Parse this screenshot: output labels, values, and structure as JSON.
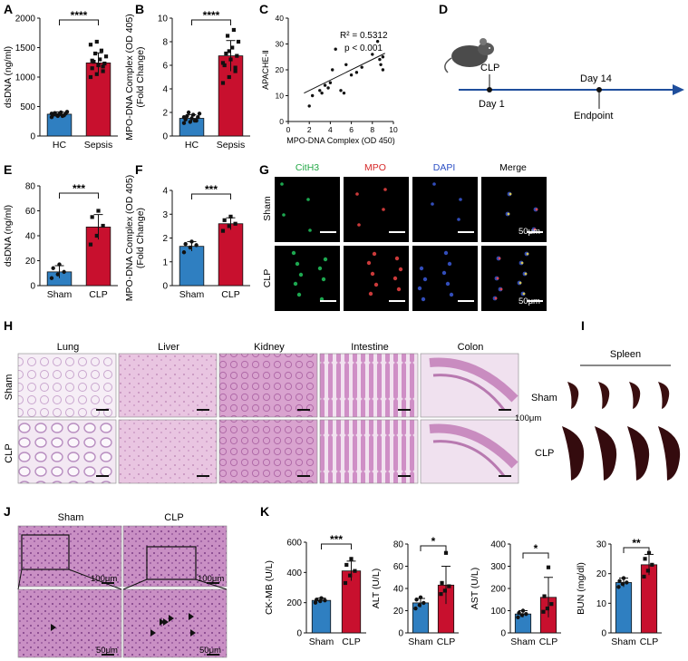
{
  "panels": {
    "A": "A",
    "B": "B",
    "C": "C",
    "D": "D",
    "E": "E",
    "F": "F",
    "G": "G",
    "H": "H",
    "I": "I",
    "J": "J",
    "K": "K"
  },
  "colors": {
    "blue": "#2f7fc1",
    "red": "#c8102e",
    "timeline": "#1f4e9c",
    "green": "#22c55e",
    "mpo": "#ef4444",
    "dapi": "#3b5bdb"
  },
  "timeline": {
    "clp": "CLP",
    "day1": "Day 1",
    "day14": "Day 14",
    "endpoint": "Endpoint",
    "mouse_icon": "mouse-icon"
  },
  "panel_g": {
    "headers": [
      "CitH3",
      "MPO",
      "DAPI",
      "Merge"
    ],
    "rows": [
      "Sham",
      "CLP"
    ],
    "scale": "50μm"
  },
  "panel_h": {
    "headers": [
      "Lung",
      "Liver",
      "Kidney",
      "Intestine",
      "Colon"
    ],
    "rows": [
      "Sham",
      "CLP"
    ],
    "scale": "100μm"
  },
  "panel_i": {
    "header": "Spleen",
    "rows": [
      "Sham",
      "CLP"
    ]
  },
  "panel_j": {
    "headers": [
      "Sham",
      "CLP"
    ],
    "scale_top": "100μm",
    "scale_bottom": "50μm"
  },
  "chart_data": [
    {
      "id": "A",
      "type": "bar",
      "categories": [
        "HC",
        "Sepsis"
      ],
      "values": [
        370,
        1240
      ],
      "errors": [
        40,
        170
      ],
      "points": [
        [
          320,
          340,
          350,
          360,
          370,
          380,
          390,
          400,
          410,
          360,
          340,
          380
        ],
        [
          1000,
          1050,
          1100,
          1150,
          1200,
          1230,
          1260,
          1300,
          1350,
          1400,
          1450,
          1550,
          1600,
          1180,
          1280
        ]
      ],
      "ylabel": "dsDNA (ng/ml)",
      "ylim": [
        0,
        2000
      ],
      "yticks": [
        0,
        500,
        1000,
        1500,
        2000
      ],
      "significance": "****"
    },
    {
      "id": "B",
      "type": "bar",
      "categories": [
        "HC",
        "Sepsis"
      ],
      "values": [
        1.5,
        6.8
      ],
      "errors": [
        0.3,
        1.3
      ],
      "points": [
        [
          1.1,
          1.2,
          1.3,
          1.4,
          1.5,
          1.6,
          1.7,
          1.8,
          1.9,
          2.0,
          1.3,
          1.6
        ],
        [
          4.5,
          5.0,
          5.5,
          6.0,
          6.5,
          6.8,
          7.0,
          7.5,
          8.0,
          8.5,
          9.0,
          6.2,
          7.2,
          5.8
        ]
      ],
      "ylabel": "MPO-DNA Complex (OD 405) (Fold Change)",
      "ylim": [
        0,
        10
      ],
      "yticks": [
        0,
        2,
        4,
        6,
        8,
        10
      ],
      "significance": "****"
    },
    {
      "id": "C",
      "type": "scatter",
      "x": [
        2.0,
        2.3,
        3.0,
        3.2,
        3.5,
        3.8,
        4.0,
        4.2,
        4.5,
        5.0,
        5.3,
        5.5,
        6.0,
        6.5,
        7.0,
        8.0,
        8.5,
        8.7,
        8.8,
        9.0,
        9.0
      ],
      "y": [
        6,
        10,
        12,
        11,
        14,
        13,
        15,
        20,
        28,
        12,
        11,
        22,
        18,
        19,
        21,
        26,
        31,
        24,
        22,
        20,
        25
      ],
      "fit": {
        "slope": 2.0,
        "intercept": 8.0
      },
      "xlabel": "MPO-DNA Complex (OD 450)",
      "ylabel": "APACHE-Ⅱ",
      "xlim": [
        0,
        10
      ],
      "ylim": [
        0,
        40
      ],
      "xticks": [
        0,
        2,
        4,
        6,
        8,
        10
      ],
      "yticks": [
        0,
        10,
        20,
        30,
        40
      ],
      "annotation": [
        "R² = 0.5312",
        "p < 0.001"
      ]
    },
    {
      "id": "E",
      "type": "bar",
      "categories": [
        "Sham",
        "CLP"
      ],
      "values": [
        11,
        47
      ],
      "errors": [
        5,
        10
      ],
      "points": [
        [
          6,
          9,
          11,
          14,
          17
        ],
        [
          33,
          40,
          48,
          55,
          60
        ]
      ],
      "ylabel": "dsDNA (ng/ml)",
      "ylim": [
        0,
        80
      ],
      "yticks": [
        0,
        20,
        40,
        60,
        80
      ],
      "significance": "***"
    },
    {
      "id": "F",
      "type": "bar",
      "categories": [
        "Sham",
        "CLP"
      ],
      "values": [
        1.65,
        2.6
      ],
      "errors": [
        0.2,
        0.25
      ],
      "points": [
        [
          1.4,
          1.6,
          1.7,
          1.75,
          1.85
        ],
        [
          2.3,
          2.5,
          2.6,
          2.75,
          2.9
        ]
      ],
      "ylabel": "MPO-DNA Complex (OD 405) (Fold Change)",
      "ylim": [
        0,
        4
      ],
      "yticks": [
        0,
        1,
        2,
        3,
        4
      ],
      "significance": "***"
    },
    {
      "id": "K1",
      "type": "bar",
      "categories": [
        "Sham",
        "CLP"
      ],
      "values": [
        215,
        410
      ],
      "errors": [
        15,
        65
      ],
      "points": [
        [
          200,
          210,
          215,
          220,
          230
        ],
        [
          330,
          380,
          410,
          450,
          490
        ]
      ],
      "ylabel": "CK-MB (U/L)",
      "ylim": [
        0,
        600
      ],
      "yticks": [
        0,
        200,
        400,
        600
      ],
      "significance": "***"
    },
    {
      "id": "K2",
      "type": "bar",
      "categories": [
        "Sham",
        "CLP"
      ],
      "values": [
        27,
        43
      ],
      "errors": [
        4,
        17
      ],
      "points": [
        [
          22,
          25,
          27,
          30,
          32
        ],
        [
          35,
          38,
          42,
          45,
          72
        ]
      ],
      "ylabel": "ALT (U/L)",
      "ylim": [
        0,
        80
      ],
      "yticks": [
        0,
        20,
        40,
        60,
        80
      ],
      "significance": "*"
    },
    {
      "id": "K3",
      "type": "bar",
      "categories": [
        "Sham",
        "CLP"
      ],
      "values": [
        85,
        160
      ],
      "errors": [
        15,
        90
      ],
      "points": [
        [
          70,
          80,
          85,
          90,
          100
        ],
        [
          95,
          110,
          130,
          165,
          295
        ]
      ],
      "ylabel": "AST (U/L)",
      "ylim": [
        0,
        400
      ],
      "yticks": [
        0,
        100,
        200,
        300,
        400
      ],
      "significance": "*"
    },
    {
      "id": "K4",
      "type": "bar",
      "categories": [
        "Sham",
        "CLP"
      ],
      "values": [
        17,
        23
      ],
      "errors": [
        1.5,
        3.5
      ],
      "points": [
        [
          15.5,
          16.5,
          17,
          17.5,
          18.5
        ],
        [
          19,
          21,
          23,
          25,
          27
        ]
      ],
      "ylabel": "BUN (mg/dl)",
      "ylim": [
        0,
        30
      ],
      "yticks": [
        0,
        10,
        20,
        30
      ],
      "significance": "**"
    }
  ]
}
